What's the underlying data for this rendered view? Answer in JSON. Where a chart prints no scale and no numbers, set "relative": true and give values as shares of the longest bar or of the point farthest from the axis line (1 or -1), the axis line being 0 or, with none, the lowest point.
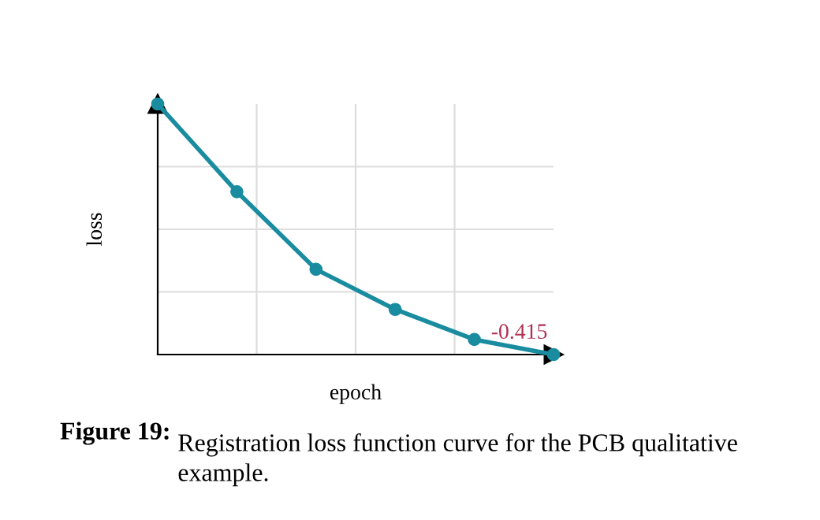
{
  "chart_data": {
    "type": "line",
    "relative": true,
    "xlabel": "epoch",
    "ylabel": "loss",
    "categories": [
      null,
      null,
      null,
      null,
      null,
      null
    ],
    "series": [
      {
        "color": "#1a8ca0",
        "values": [
          1,
          0.65,
          0.34,
          0.18,
          0.06,
          0
        ]
      }
    ],
    "marker": "circle",
    "line_style": "solid",
    "grid": true,
    "annotations": [
      "-0.415",
      "Figure 19:",
      "Registration loss function curve for the PCB qualitative example."
    ]
  }
}
